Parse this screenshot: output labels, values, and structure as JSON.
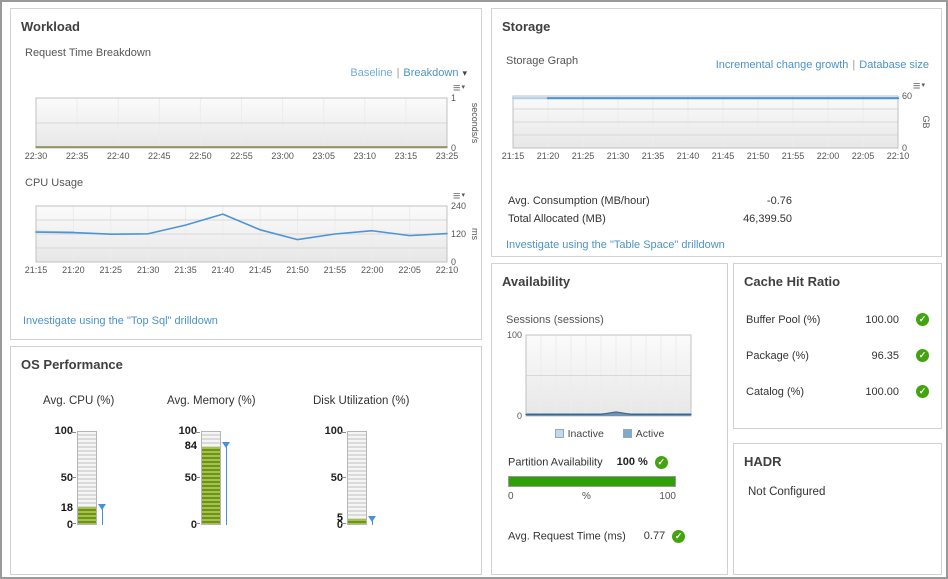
{
  "icons": {
    "ok": "✓",
    "menu": "≡",
    "caret_down": "▾",
    "sep": "|"
  },
  "workload": {
    "title": "Workload",
    "request_time": {
      "title": "Request Time Breakdown",
      "links": {
        "baseline": "Baseline",
        "breakdown": "Breakdown"
      },
      "chart": {
        "type": "line",
        "x_labels": [
          "22:30",
          "22:35",
          "22:40",
          "22:45",
          "22:50",
          "22:55",
          "23:00",
          "23:05",
          "23:10",
          "23:15",
          "23:25"
        ],
        "ylim": [
          0,
          1
        ],
        "y_grid": [
          0,
          0.5,
          1
        ],
        "y_ticks": [
          {
            "v": 1,
            "label": "1"
          },
          {
            "v": 0,
            "label": "0"
          }
        ],
        "y_side": "right",
        "unit": "seconds/s",
        "series": [
          {
            "name": "request-time",
            "color": "#77782f",
            "width": 1.2,
            "values": [
              0.02,
              0.02,
              0.02,
              0.02,
              0.02,
              0.02,
              0.02,
              0.02,
              0.02,
              0.02,
              0.02
            ]
          }
        ]
      }
    },
    "cpu_usage": {
      "title": "CPU Usage",
      "chart": {
        "type": "line",
        "x_labels": [
          "21:15",
          "21:20",
          "21:25",
          "21:30",
          "21:35",
          "21:40",
          "21:45",
          "21:50",
          "21:55",
          "22:00",
          "22:05",
          "22:10"
        ],
        "ylim": [
          0,
          240
        ],
        "y_grid": [
          0,
          60,
          120,
          180,
          240
        ],
        "y_ticks": [
          {
            "v": 240,
            "label": "240"
          },
          {
            "v": 120,
            "label": "120"
          },
          {
            "v": 0,
            "label": "0"
          }
        ],
        "y_side": "right",
        "unit": "ms",
        "series": [
          {
            "name": "baseline",
            "color": "#a9cce8",
            "width": 2,
            "values": [
              130,
              127,
              null,
              null,
              null,
              null,
              null,
              null,
              null,
              null,
              null,
              null
            ]
          },
          {
            "name": "cpu-ms",
            "color": "#4e94d4",
            "width": 1.6,
            "values": [
              128,
              126,
              119,
              121,
              158,
              205,
              138,
              96,
              120,
              134,
              113,
              122
            ]
          }
        ]
      }
    },
    "drilldown": "Investigate using the \"Top Sql\" drilldown"
  },
  "os_performance": {
    "title": "OS Performance",
    "gauges": [
      {
        "title": "Avg. CPU (%)",
        "value": 18,
        "max": 100,
        "ticks": [
          "100",
          "50",
          "0"
        ]
      },
      {
        "title": "Avg. Memory (%)",
        "value": 84,
        "max": 100,
        "ticks": [
          "100",
          "50",
          "0"
        ]
      },
      {
        "title": "Disk Utilization (%)",
        "value": 5,
        "max": 100,
        "ticks": [
          "100",
          "50",
          "0"
        ]
      }
    ]
  },
  "storage": {
    "title": "Storage",
    "graph_title": "Storage Graph",
    "links": {
      "incremental": "Incremental change growth",
      "database": "Database size"
    },
    "chart": {
      "type": "line",
      "x_labels": [
        "21:15",
        "21:20",
        "21:25",
        "21:30",
        "21:35",
        "21:40",
        "21:45",
        "21:50",
        "21:55",
        "22:00",
        "22:05",
        "22:10"
      ],
      "ylim": [
        0,
        60
      ],
      "y_grid": [
        0,
        15,
        30,
        45,
        60
      ],
      "y_ticks": [
        {
          "v": 60,
          "label": "60"
        },
        {
          "v": 0,
          "label": "0"
        }
      ],
      "y_side": "right",
      "unit": "GB",
      "series": [
        {
          "name": "baseline",
          "color": "#aed0ea",
          "width": 2.2,
          "values": [
            57.5,
            57.5,
            null,
            null,
            null,
            null,
            null,
            null,
            null,
            null,
            null,
            null
          ]
        },
        {
          "name": "database-size",
          "color": "#4e94d4",
          "width": 2.2,
          "values": [
            null,
            57.5,
            57.5,
            57.5,
            57.5,
            57.5,
            57.5,
            57.5,
            57.5,
            57.5,
            57.5,
            57.5
          ]
        }
      ]
    },
    "metrics": [
      {
        "label": "Avg. Consumption (MB/hour)",
        "value": "-0.76"
      },
      {
        "label": "Total Allocated (MB)",
        "value": "46,399.50"
      }
    ],
    "drilldown": "Investigate using the \"Table Space\" drilldown"
  },
  "availability": {
    "title": "Availability",
    "sessions_title": "Sessions (sessions)",
    "chart": {
      "type": "area",
      "x_labels": [],
      "ylim": [
        0,
        100
      ],
      "y_grid": [
        0,
        50,
        100
      ],
      "y_ticks": [
        {
          "v": 100,
          "label": "100"
        },
        {
          "v": 0,
          "label": "0"
        }
      ],
      "y_side": "left",
      "series": [
        {
          "name": "inactive",
          "color": "#9dbdd8",
          "fill": "#cfe0ee",
          "width": 1,
          "values": [
            3,
            3,
            3,
            3,
            3,
            3,
            3,
            3,
            3,
            3,
            3,
            3
          ]
        },
        {
          "name": "active",
          "color": "#41658a",
          "fill": "#6d94b5",
          "width": 1.2,
          "values": [
            2,
            2,
            2,
            2,
            2,
            2,
            5,
            2,
            2,
            2,
            2,
            2
          ]
        }
      ]
    },
    "legend": [
      {
        "label": "Inactive",
        "color": "#c3d8e9"
      },
      {
        "label": "Active",
        "color": "#7fa8c9"
      }
    ],
    "partition": {
      "label": "Partition Availability",
      "value": "100 %",
      "percent": 100,
      "bar_color": "#2fa005",
      "scale": [
        "0",
        "%",
        "100"
      ]
    },
    "avg_request": {
      "label": "Avg. Request Time (ms)",
      "value": "0.77"
    }
  },
  "cache": {
    "title": "Cache Hit Ratio",
    "rows": [
      {
        "label": "Buffer Pool (%)",
        "value": "100.00"
      },
      {
        "label": "Package (%)",
        "value": "96.35"
      },
      {
        "label": "Catalog (%)",
        "value": "100.00"
      }
    ]
  },
  "hadr": {
    "title": "HADR",
    "text": "Not Configured"
  }
}
